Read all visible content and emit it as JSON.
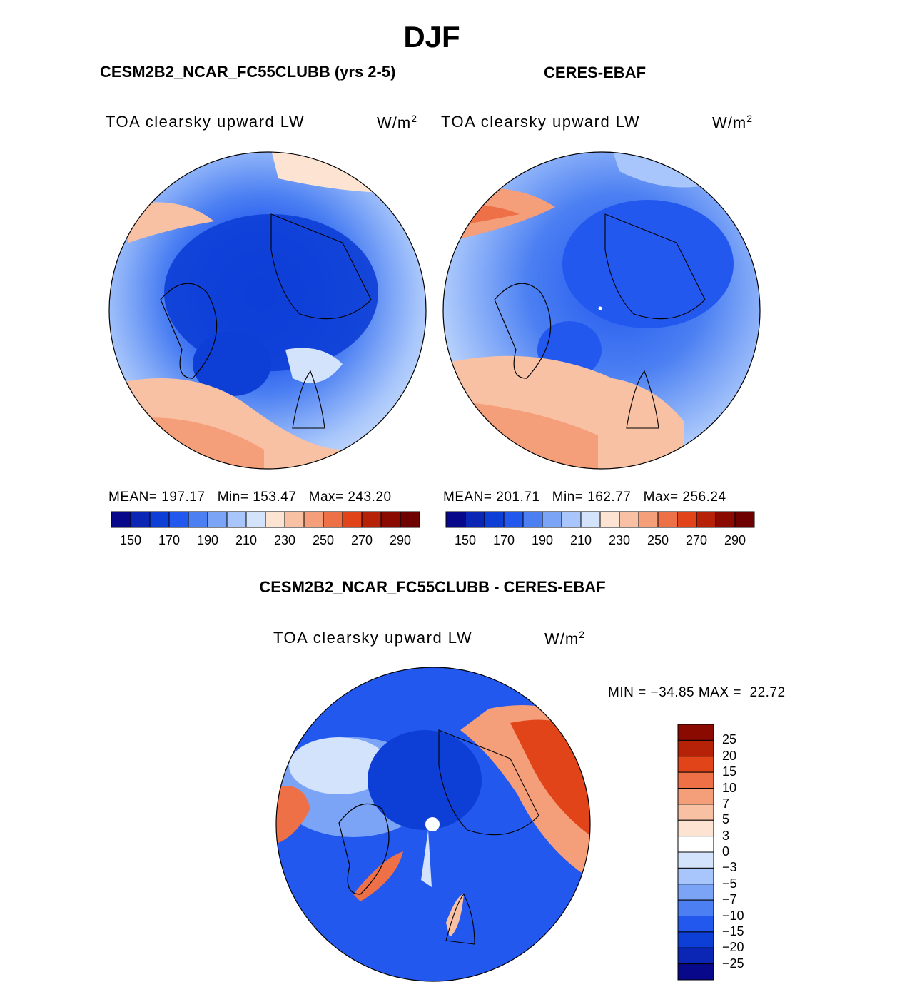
{
  "season": "DJF",
  "panels": {
    "model": {
      "title": "CESM2B2_NCAR_FC55CLUBB (yrs 2-5)",
      "variable": "TOA clearsky upward LW",
      "units_base": "W/m",
      "units_exp": "2",
      "stats": "MEAN= 197.17   Min= 153.47   Max= 243.20"
    },
    "obs": {
      "title": "CERES-EBAF",
      "variable": "TOA clearsky upward LW",
      "units_base": "W/m",
      "units_exp": "2",
      "stats": "MEAN= 201.71   Min= 162.77   Max= 256.24"
    },
    "diff": {
      "title": "CESM2B2_NCAR_FC55CLUBB - CERES-EBAF",
      "variable": "TOA clearsky upward LW",
      "units_base": "W/m",
      "units_exp": "2",
      "stats": "MIN = −34.85 MAX =  22.72"
    }
  },
  "chart_data": [
    {
      "type": "heatmap",
      "projection": "north polar stereographic",
      "title": "CESM2B2_NCAR_FC55CLUBB (yrs 2-5)",
      "variable": "TOA clearsky upward LW",
      "units": "W/m2",
      "mean": 197.17,
      "min": 153.47,
      "max": 243.2,
      "colorbar": {
        "levels": [
          150,
          160,
          170,
          180,
          190,
          200,
          210,
          220,
          230,
          240,
          250,
          260,
          270,
          280,
          290
        ],
        "tick_labels": [
          "150",
          "170",
          "190",
          "210",
          "230",
          "250",
          "270",
          "290"
        ],
        "colors": [
          "#08088a",
          "#0b26b4",
          "#0d3ed6",
          "#2358ef",
          "#4b7ff2",
          "#7ba4f7",
          "#a8c6fb",
          "#d2e3fb",
          "#fde4d2",
          "#f9c1a4",
          "#f59e7a",
          "#ee7047",
          "#e04418",
          "#b52208",
          "#8b0a00",
          "#6e0000"
        ]
      }
    },
    {
      "type": "heatmap",
      "projection": "north polar stereographic",
      "title": "CERES-EBAF",
      "variable": "TOA clearsky upward LW",
      "units": "W/m2",
      "mean": 201.71,
      "min": 162.77,
      "max": 256.24,
      "colorbar": {
        "levels": [
          150,
          160,
          170,
          180,
          190,
          200,
          210,
          220,
          230,
          240,
          250,
          260,
          270,
          280,
          290
        ],
        "tick_labels": [
          "150",
          "170",
          "190",
          "210",
          "230",
          "250",
          "270",
          "290"
        ]
      }
    },
    {
      "type": "heatmap",
      "projection": "north polar stereographic",
      "title": "CESM2B2_NCAR_FC55CLUBB - CERES-EBAF",
      "variable": "TOA clearsky upward LW",
      "units": "W/m2",
      "min": -34.85,
      "max": 22.72,
      "colorbar": {
        "orientation": "vertical",
        "levels": [
          -25,
          -20,
          -15,
          -10,
          -7,
          -5,
          -3,
          0,
          3,
          5,
          7,
          10,
          15,
          20,
          25
        ],
        "tick_labels": [
          "25",
          "20",
          "15",
          "10",
          "7",
          "5",
          "3",
          "0",
          "−3",
          "−5",
          "−7",
          "−10",
          "−15",
          "−20",
          "−25"
        ],
        "colors_top_to_bottom": [
          "#8b0a00",
          "#b52208",
          "#e04418",
          "#ee7047",
          "#f59e7a",
          "#f9c1a4",
          "#fde4d2",
          "#ffffff",
          "#d2e3fb",
          "#a8c6fb",
          "#7ba4f7",
          "#4b7ff2",
          "#2358ef",
          "#0d3ed6",
          "#0b26b4",
          "#08088a"
        ]
      }
    }
  ]
}
